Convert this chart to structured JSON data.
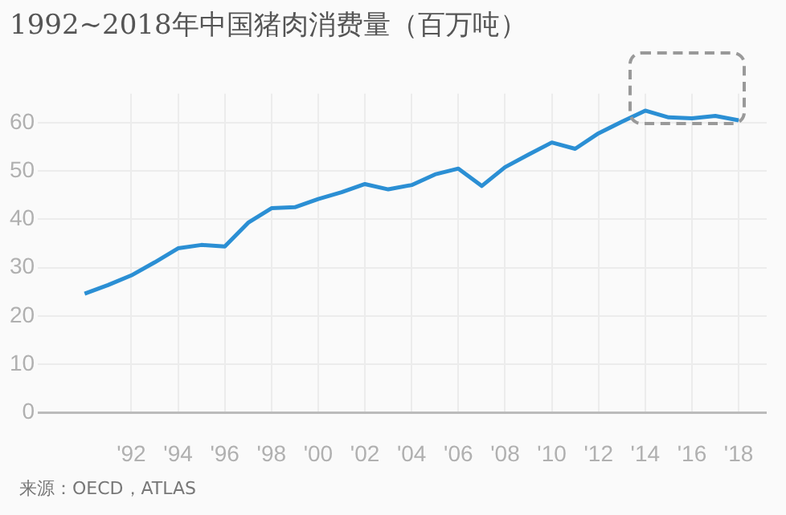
{
  "chart_data": {
    "type": "line",
    "title": "1992~2018年中国猪肉消费量（百万吨）",
    "x": [
      1990,
      1991,
      1992,
      1993,
      1994,
      1995,
      1996,
      1997,
      1998,
      1999,
      2000,
      2001,
      2002,
      2003,
      2004,
      2005,
      2006,
      2007,
      2008,
      2009,
      2010,
      2011,
      2012,
      2013,
      2014,
      2015,
      2016,
      2017,
      2018
    ],
    "series": [
      {
        "color": "#2b8fd4",
        "values": [
          24.6,
          26.4,
          28.4,
          31.1,
          34.0,
          34.7,
          34.4,
          39.3,
          42.3,
          42.5,
          44.2,
          45.6,
          47.3,
          46.2,
          47.1,
          49.3,
          50.5,
          46.9,
          50.8,
          53.4,
          55.9,
          54.6,
          57.8,
          60.2,
          62.5,
          61.1,
          60.9,
          61.4,
          60.5
        ]
      }
    ],
    "xlim": [
      1988,
      2019.2
    ],
    "xticks": [
      {
        "value": 1992,
        "label": "'92"
      },
      {
        "value": 1994,
        "label": "'94"
      },
      {
        "value": 1996,
        "label": "'96"
      },
      {
        "value": 1998,
        "label": "'98"
      },
      {
        "value": 2000,
        "label": "'00"
      },
      {
        "value": 2002,
        "label": "'02"
      },
      {
        "value": 2004,
        "label": "'04"
      },
      {
        "value": 2006,
        "label": "'06"
      },
      {
        "value": 2008,
        "label": "'08"
      },
      {
        "value": 2010,
        "label": "'10"
      },
      {
        "value": 2012,
        "label": "'12"
      },
      {
        "value": 2014,
        "label": "'14"
      },
      {
        "value": 2016,
        "label": "'16"
      },
      {
        "value": 2018,
        "label": "'18"
      }
    ],
    "ylim": [
      0,
      66
    ],
    "yticks": [
      0,
      10,
      20,
      30,
      40,
      50,
      60
    ],
    "grid": true,
    "legend": false,
    "marker": "none",
    "line_style": "solid",
    "annotations": [
      "来源：OECD，ATLAS"
    ]
  }
}
